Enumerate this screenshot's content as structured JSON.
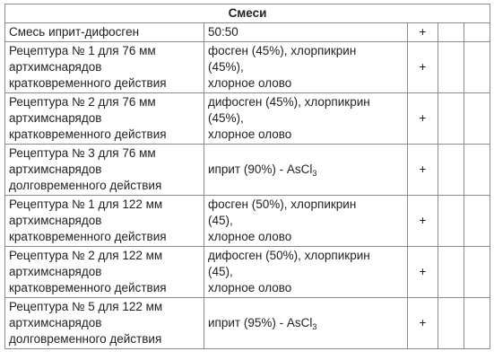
{
  "table": {
    "title": "Смеси",
    "rows": [
      {
        "name_lines": [
          "Смесь иприт-дифосген"
        ],
        "composition_lines": [
          "50:50"
        ],
        "mark": "+"
      },
      {
        "name_lines": [
          "Рецептура № 1 для 76 мм",
          "артхимснарядов",
          "кратковременного действия"
        ],
        "composition_lines": [
          "фосген (45%), хлорпикрин",
          "(45%),",
          "хлорное олово"
        ],
        "mark": "+"
      },
      {
        "name_lines": [
          "Рецептура № 2 для 76 мм",
          "артхимснарядов",
          "кратковременного действия"
        ],
        "composition_lines": [
          "дифосген (45%), хлорпикрин",
          "(45%),",
          "хлорное олово"
        ],
        "mark": "+"
      },
      {
        "name_lines": [
          "Рецептура № 3 для 76 мм",
          "артхимснарядов",
          "долговременного действия"
        ],
        "composition_prefix": "иприт (90%) - AsCl",
        "composition_sub": "3",
        "mark": "+"
      },
      {
        "name_lines": [
          "Рецептура № 1 для 122 мм",
          "артхимснарядов",
          "кратковременного действия"
        ],
        "composition_lines": [
          "фосген (50%), хлорпикрин",
          "(45),",
          "хлорное олово"
        ],
        "mark": "+"
      },
      {
        "name_lines": [
          "Рецептура № 2 для 122 мм",
          "артхимснарядов",
          "кратковременного действия"
        ],
        "composition_lines": [
          "дифосген (50%), хлорпикрин",
          "(45),",
          "хлорное олово"
        ],
        "mark": "+"
      },
      {
        "name_lines": [
          "Рецептура № 5 для 122 мм",
          "артхимснарядов",
          "долговременного действия"
        ],
        "composition_prefix": "иприт (95%) - AsCl",
        "composition_sub": "3",
        "mark": "+"
      }
    ]
  }
}
